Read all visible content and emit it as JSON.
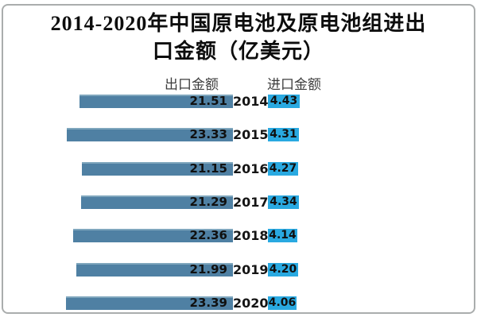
{
  "title": {
    "line1": "2014-2020年中国原电池及原电池组进出",
    "line2": "口金额（亿美元）"
  },
  "colors": {
    "export_bar": "#4f80a3",
    "export_bar_highlight": "#7fa6bd",
    "import_bar": "#29a9e1",
    "frame_border": "#aaadad",
    "title_text": "#0d0d0d",
    "header_text": "#3d3d3d"
  },
  "chart_data": {
    "type": "bar",
    "orientation": "horizontal",
    "title": "2014-2020年中国原电池及原电池组进出口金额（亿美元）",
    "unit": "亿美元",
    "categories": [
      "2014",
      "2015",
      "2016",
      "2017",
      "2018",
      "2019",
      "2020"
    ],
    "series": [
      {
        "name": "出口金额",
        "values": [
          21.51,
          23.33,
          21.15,
          21.29,
          22.36,
          21.99,
          23.39
        ]
      },
      {
        "name": "进口金额",
        "values": [
          4.43,
          4.31,
          4.27,
          4.34,
          4.14,
          4.2,
          4.06
        ]
      }
    ],
    "legend_position": "top",
    "grid": false,
    "rows": [
      {
        "year": "2014",
        "export_label": "21.51",
        "import_label": "4.43"
      },
      {
        "year": "2015",
        "export_label": "23.33",
        "import_label": "4.31"
      },
      {
        "year": "2016",
        "export_label": "21.15",
        "import_label": "4.27"
      },
      {
        "year": "2017",
        "export_label": "21.29",
        "import_label": "4.34"
      },
      {
        "year": "2018",
        "export_label": "22.36",
        "import_label": "4.14"
      },
      {
        "year": "2019",
        "export_label": "21.99",
        "import_label": "4.20"
      },
      {
        "year": "2020",
        "export_label": "23.39",
        "import_label": "4.06"
      }
    ]
  }
}
